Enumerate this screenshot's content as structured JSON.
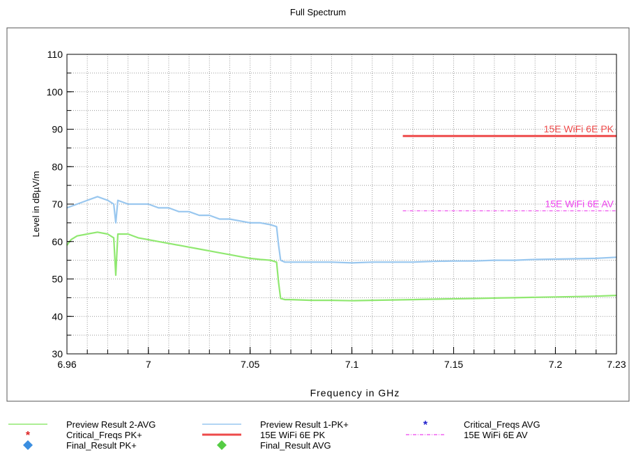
{
  "chart_data": {
    "type": "line",
    "title": "Full Spectrum",
    "xlabel": "Frequency in GHz",
    "ylabel": "Level in dBµV/m",
    "xlim": [
      6.96,
      7.23
    ],
    "ylim": [
      30,
      110
    ],
    "x_ticks": [
      6.96,
      7.0,
      7.05,
      7.1,
      7.15,
      7.2,
      7.23
    ],
    "x_tick_labels": [
      "6.96",
      "7",
      "7.05",
      "7.1",
      "7.15",
      "7.2",
      "7.23"
    ],
    "y_ticks": [
      30,
      40,
      50,
      60,
      70,
      80,
      90,
      100,
      110
    ],
    "y_tick_labels": [
      "30",
      "40",
      "50",
      "60",
      "70",
      "80",
      "90",
      "100",
      "110"
    ],
    "grid": true,
    "series": [
      {
        "name": "Preview Result 1-PK+",
        "color": "#99c7ef",
        "x": [
          6.96,
          6.965,
          6.97,
          6.975,
          6.98,
          6.983,
          6.984,
          6.985,
          6.99,
          6.995,
          7.0,
          7.005,
          7.01,
          7.015,
          7.02,
          7.025,
          7.03,
          7.035,
          7.04,
          7.045,
          7.05,
          7.055,
          7.06,
          7.063,
          7.064,
          7.065,
          7.067,
          7.07,
          7.08,
          7.09,
          7.1,
          7.11,
          7.12,
          7.13,
          7.14,
          7.15,
          7.16,
          7.17,
          7.18,
          7.19,
          7.2,
          7.21,
          7.22,
          7.23
        ],
        "y": [
          69,
          70,
          71,
          72,
          71,
          70,
          65,
          71,
          70,
          70,
          70,
          69,
          69,
          68,
          68,
          67,
          67,
          66,
          66,
          65.5,
          65,
          65,
          64.5,
          64,
          59,
          55,
          54.5,
          54.5,
          54.5,
          54.5,
          54.3,
          54.5,
          54.5,
          54.5,
          54.7,
          54.8,
          54.8,
          55,
          55,
          55.2,
          55.3,
          55.4,
          55.5,
          55.8
        ]
      },
      {
        "name": "Preview Result 2-AVG",
        "color": "#90e870",
        "x": [
          6.96,
          6.962,
          6.965,
          6.97,
          6.975,
          6.98,
          6.983,
          6.984,
          6.985,
          6.99,
          6.995,
          7.0,
          7.005,
          7.01,
          7.015,
          7.02,
          7.025,
          7.03,
          7.035,
          7.04,
          7.045,
          7.05,
          7.055,
          7.06,
          7.063,
          7.064,
          7.065,
          7.067,
          7.07,
          7.08,
          7.09,
          7.1,
          7.11,
          7.12,
          7.13,
          7.14,
          7.15,
          7.16,
          7.17,
          7.18,
          7.19,
          7.2,
          7.21,
          7.22,
          7.23
        ],
        "y": [
          59,
          60.5,
          61.5,
          62,
          62.5,
          62,
          61,
          51,
          62,
          62,
          61,
          60.5,
          60,
          59.5,
          59,
          58.5,
          58,
          57.5,
          57,
          56.5,
          56,
          55.5,
          55.2,
          55,
          54.5,
          49,
          44.8,
          44.5,
          44.5,
          44.3,
          44.3,
          44.2,
          44.3,
          44.4,
          44.5,
          44.6,
          44.7,
          44.8,
          44.9,
          45,
          45.1,
          45.2,
          45.3,
          45.4,
          45.6
        ]
      },
      {
        "name": "15E WiFi 6E PK",
        "color": "#ee4a4a",
        "x": [
          7.125,
          7.23
        ],
        "y": [
          88.2,
          88.2
        ],
        "label": "15E WiFi 6E PK"
      },
      {
        "name": "15E WiFi 6E AV",
        "color": "#ee44ee",
        "x": [
          7.125,
          7.23
        ],
        "y": [
          68.2,
          68.2
        ],
        "label": "15E WiFi 6E AV"
      }
    ],
    "legend": {
      "placement": "bottom",
      "entries": [
        {
          "name": "Preview Result 2-AVG",
          "symbol": "line",
          "color": "#90e870"
        },
        {
          "name": "Preview Result 1-PK+",
          "symbol": "line",
          "color": "#99c7ef"
        },
        {
          "name": "Critical_Freqs AVG",
          "symbol": "star",
          "color": "#2222cc"
        },
        {
          "name": "Critical_Freqs PK+",
          "symbol": "star",
          "color": "#dd2222"
        },
        {
          "name": "15E WiFi 6E PK",
          "symbol": "thick-line",
          "color": "#ee4a4a"
        },
        {
          "name": "15E WiFi 6E AV",
          "symbol": "dash-dot",
          "color": "#ee44ee"
        },
        {
          "name": "Final_Result PK+",
          "symbol": "diamond",
          "color": "#3a8ee0"
        },
        {
          "name": "Final_Result AVG",
          "symbol": "diamond",
          "color": "#55cc44"
        }
      ]
    }
  }
}
